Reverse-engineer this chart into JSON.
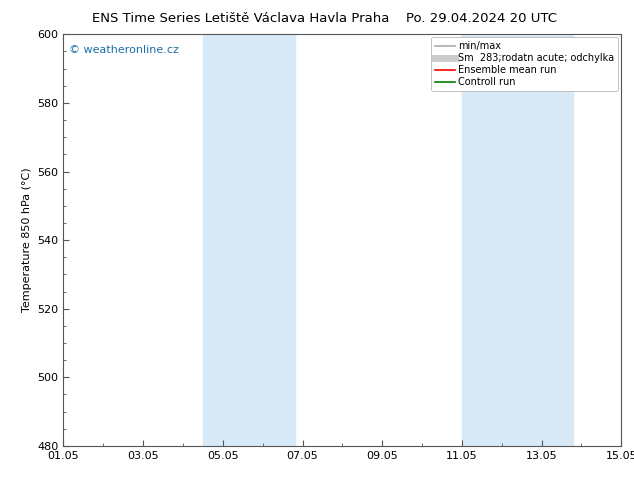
{
  "title_left": "ENS Time Series Letiště Václava Havla Praha",
  "title_right": "Po. 29.04.2024 20 UTC",
  "ylabel": "Temperature 850 hPa (°C)",
  "ylim": [
    480,
    600
  ],
  "yticks": [
    480,
    500,
    520,
    540,
    560,
    580,
    600
  ],
  "xlim": [
    0,
    14
  ],
  "xtick_labels": [
    "01.05",
    "03.05",
    "05.05",
    "07.05",
    "09.05",
    "11.05",
    "13.05",
    "15.05"
  ],
  "xtick_positions": [
    0,
    2,
    4,
    6,
    8,
    10,
    12,
    14
  ],
  "shade_bands": [
    {
      "xmin": 3.5,
      "xmax": 5.8
    },
    {
      "xmin": 10.0,
      "xmax": 12.8
    }
  ],
  "shade_color": "#d8eaf8",
  "shade_alpha": 1.0,
  "watermark": "© weatheronline.cz",
  "legend_entries": [
    {
      "label": "min/max",
      "color": "#aaaaaa",
      "lw": 1.2,
      "style": "solid"
    },
    {
      "label": "Sm  283;rodatn acute; odchylka",
      "color": "#cccccc",
      "lw": 5,
      "style": "solid"
    },
    {
      "label": "Ensemble mean run",
      "color": "red",
      "lw": 1.2,
      "style": "solid"
    },
    {
      "label": "Controll run",
      "color": "green",
      "lw": 1.2,
      "style": "solid"
    }
  ],
  "bg_color": "#ffffff",
  "plot_bg_color": "#ffffff",
  "title_fontsize": 9.5,
  "tick_fontsize": 8,
  "ylabel_fontsize": 8,
  "watermark_color": "#1a6fa8",
  "spine_color": "#555555"
}
